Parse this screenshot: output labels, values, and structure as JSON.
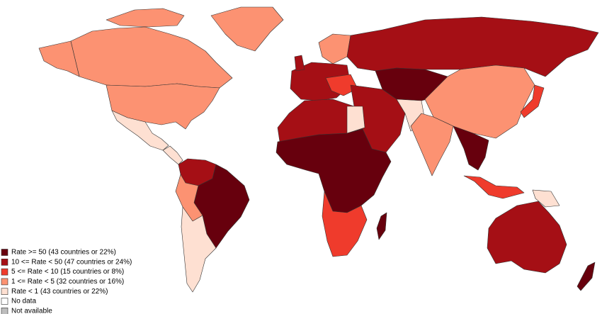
{
  "legend": {
    "items": [
      {
        "label": "Rate >= 50 (43 countries or 22%)",
        "color": "#67000d"
      },
      {
        "label": "10 <= Rate < 50 (47 countries or 24%)",
        "color": "#a50f15"
      },
      {
        "label": "5 <= Rate < 10 (15 countries or 8%)",
        "color": "#ef3b2c"
      },
      {
        "label": "1 <= Rate < 5 (32 countries or 16%)",
        "color": "#fc9272"
      },
      {
        "label": "Rate < 1 (43 countries or 22%)",
        "color": "#fee0d2"
      },
      {
        "label": "No data",
        "color": "#ffffff"
      },
      {
        "label": "Not available",
        "color": "#bdbdbd"
      }
    ]
  }
}
